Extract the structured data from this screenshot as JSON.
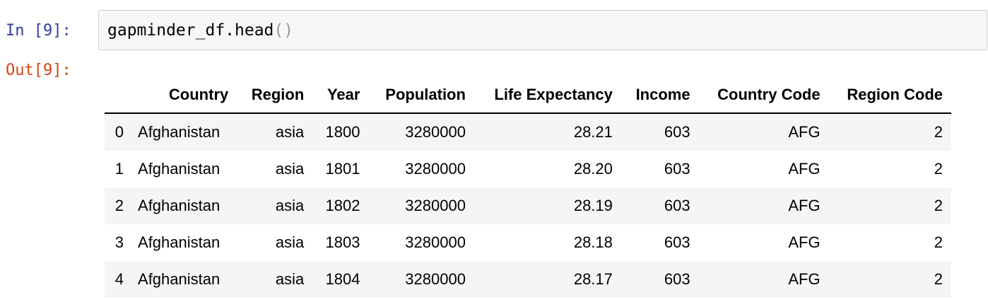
{
  "cell": {
    "in_prompt": "In [9]:",
    "out_prompt": "Out[9]:",
    "code_name": "gapminder_df.head",
    "code_parens": "()"
  },
  "table": {
    "headers": [
      "",
      "Country",
      "Region",
      "Year",
      "Population",
      "Life Expectancy",
      "Income",
      "Country Code",
      "Region Code"
    ],
    "rows": [
      [
        "0",
        "Afghanistan",
        "asia",
        "1800",
        "3280000",
        "28.21",
        "603",
        "AFG",
        "2"
      ],
      [
        "1",
        "Afghanistan",
        "asia",
        "1801",
        "3280000",
        "28.20",
        "603",
        "AFG",
        "2"
      ],
      [
        "2",
        "Afghanistan",
        "asia",
        "1802",
        "3280000",
        "28.19",
        "603",
        "AFG",
        "2"
      ],
      [
        "3",
        "Afghanistan",
        "asia",
        "1803",
        "3280000",
        "28.18",
        "603",
        "AFG",
        "2"
      ],
      [
        "4",
        "Afghanistan",
        "asia",
        "1804",
        "3280000",
        "28.17",
        "603",
        "AFG",
        "2"
      ]
    ]
  },
  "colors": {
    "in_prompt": "#303f9f",
    "out_prompt": "#d84315",
    "input_bg": "#f7f7f7",
    "input_border": "#cfcfcf",
    "row_stripe": "#f5f5f5"
  }
}
